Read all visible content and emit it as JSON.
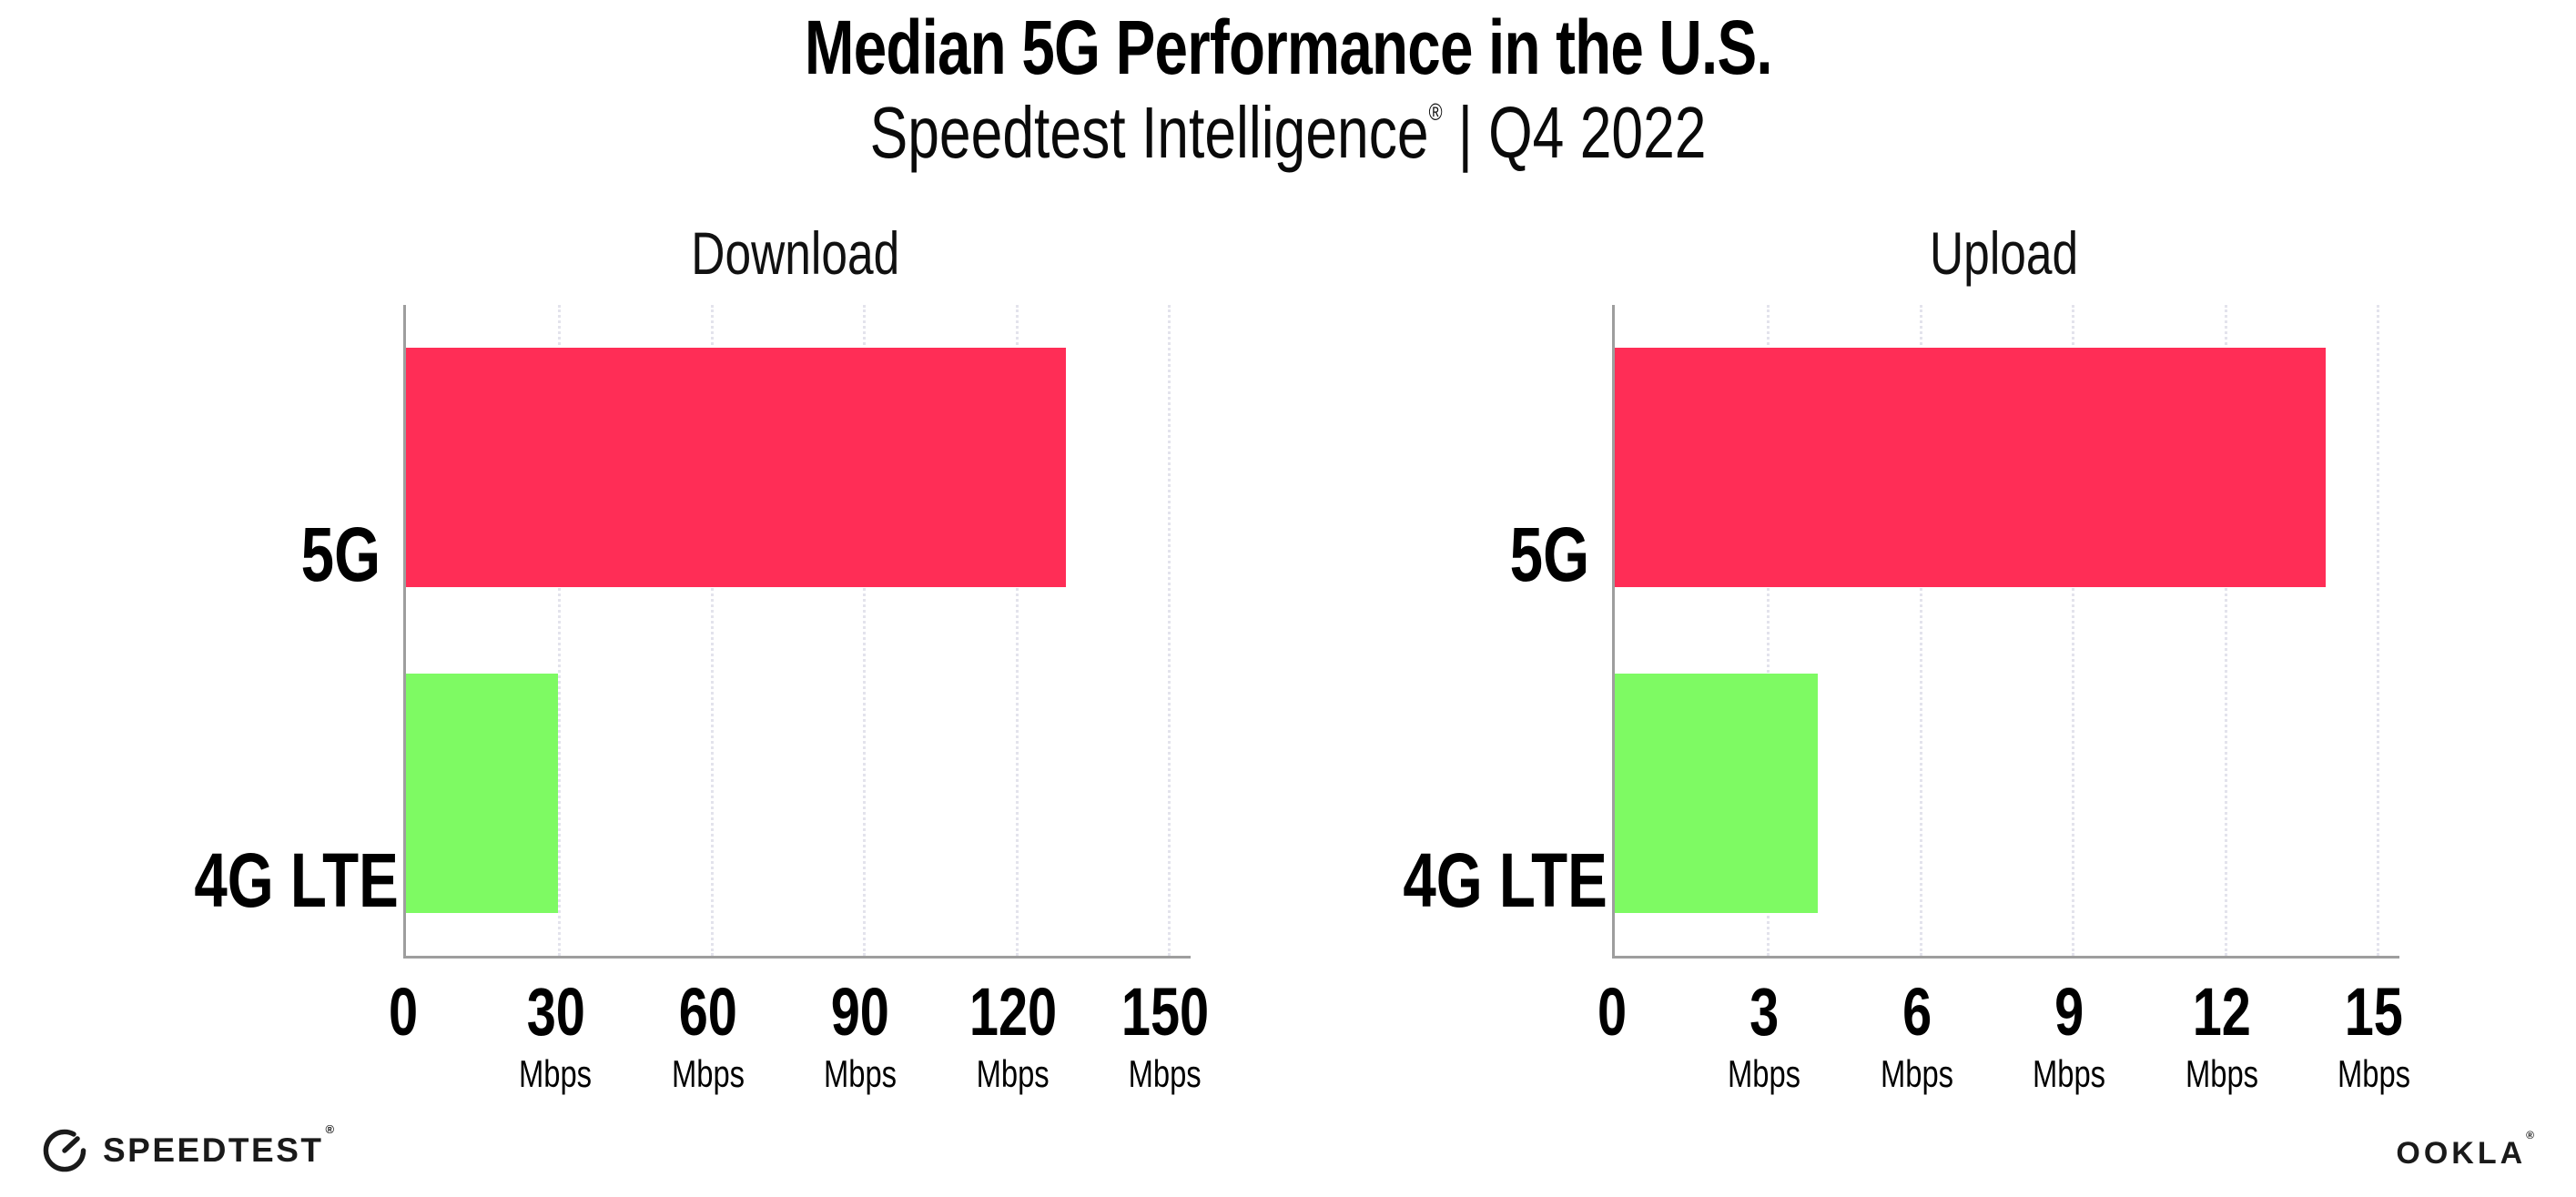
{
  "header": {
    "title": "Median 5G Performance in the U.S.",
    "subtitle": {
      "brand": "Speedtest Intelligence",
      "reg": "®",
      "divider": "|",
      "period": "Q4 2022"
    }
  },
  "chart_data": [
    {
      "type": "bar",
      "orientation": "horizontal",
      "title": "Download",
      "categories": [
        "5G",
        "4G LTE"
      ],
      "values": [
        130,
        30
      ],
      "unit": "Mbps",
      "xlabel": "",
      "ylabel": "",
      "xlim": [
        0,
        150
      ],
      "xticks": [
        0,
        30,
        60,
        90,
        120,
        150
      ],
      "grid": "vertical-dotted",
      "legend_position": "none",
      "bar_colors": [
        "#FF2D56",
        "#7EFA63"
      ]
    },
    {
      "type": "bar",
      "orientation": "horizontal",
      "title": "Upload",
      "categories": [
        "5G",
        "4G LTE"
      ],
      "values": [
        14,
        4
      ],
      "unit": "Mbps",
      "xlabel": "",
      "ylabel": "",
      "xlim": [
        0,
        15
      ],
      "xticks": [
        0,
        3,
        6,
        9,
        12,
        15
      ],
      "grid": "vertical-dotted",
      "legend_position": "none",
      "bar_colors": [
        "#FF2D56",
        "#7EFA63"
      ]
    }
  ],
  "colors": {
    "bar_5g": "#FF2D56",
    "bar_4g_lte": "#7EFA63",
    "axis_line": "#9E9E9E",
    "gridline": "#E3E3EC",
    "text": "#000000"
  },
  "footer": {
    "speedtest_logo_text": "SPEEDTEST",
    "speedtest_reg": "®",
    "ookla_logo_text": "OOKLA",
    "ookla_reg": "®"
  }
}
